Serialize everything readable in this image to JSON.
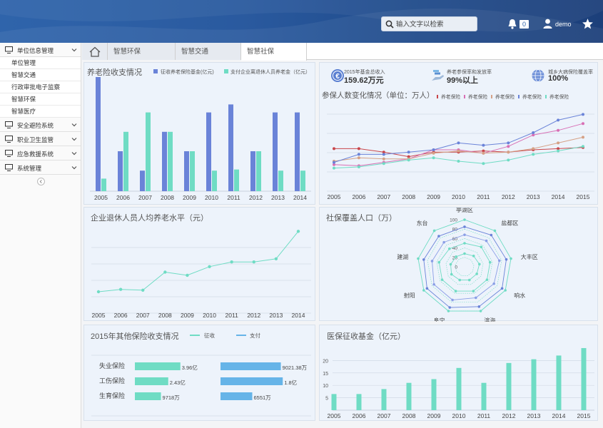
{
  "header": {
    "search_placeholder": "输入文字以检索",
    "notification_count": "0",
    "username": "demo"
  },
  "sidebar": {
    "groups": [
      {
        "label": "单位信息管理",
        "expanded": true,
        "items": [
          "单位管理",
          "智慧交通",
          "行政审批电子监察",
          "智慧环保",
          "智慧医疗"
        ]
      },
      {
        "label": "安全避险系统"
      },
      {
        "label": "职业卫生监管"
      },
      {
        "label": "应急救援系统"
      },
      {
        "label": "系统管理"
      }
    ]
  },
  "tabs": [
    "智慧环保",
    "智慧交通",
    "智慧社保"
  ],
  "active_tab": "智慧社保",
  "stats": [
    {
      "label": "2015年基金总收入",
      "value": "159.62万元",
      "icon": "euro-coin-icon"
    },
    {
      "label": "养老参保率和发放率",
      "value": "99%以上",
      "icon": "hand-coins-icon"
    },
    {
      "label": "城乡大病保险覆盖率",
      "value": "100%",
      "icon": "globe-icon"
    }
  ],
  "colors": {
    "blue": "#6a83d8",
    "teal": "#6fdcc4",
    "bar_blue": "#66b4e8"
  },
  "charts": [
    {
      "id": "pension",
      "type": "bar",
      "title": "养老险收支情况",
      "categories": [
        "2005",
        "2006",
        "2007",
        "2008",
        "2009",
        "2010",
        "2011",
        "2012",
        "2013",
        "2014"
      ],
      "series": [
        {
          "name": "征收养老保险基金(亿元)",
          "values": [
            100,
            35,
            18,
            52,
            35,
            69,
            76,
            35,
            69,
            69
          ]
        },
        {
          "name": "支付企业离退休人员养老金（亿元）",
          "values": [
            11,
            52,
            69,
            52,
            35,
            18,
            19,
            35,
            18,
            18
          ]
        }
      ],
      "ylim": [
        0,
        100
      ]
    },
    {
      "id": "insured",
      "type": "line",
      "title": "参保人数变化情况（单位：万人）",
      "categories": [
        "2005",
        "2006",
        "2007",
        "2008",
        "2009",
        "2010",
        "2011",
        "2012",
        "2013",
        "2014",
        "2015"
      ],
      "series": [
        {
          "name": "养老保险",
          "color": "#c9454a",
          "values": [
            36,
            36,
            33,
            29,
            33,
            33,
            34,
            33,
            35,
            36,
            37
          ]
        },
        {
          "name": "养老保险",
          "color": "#d86fb5",
          "values": [
            22,
            21,
            24,
            27,
            35,
            35,
            32,
            38,
            48,
            52,
            58
          ]
        },
        {
          "name": "养老保险",
          "color": "#d5a186",
          "values": [
            25,
            28,
            27,
            27,
            32,
            34,
            32,
            33,
            36,
            41,
            46
          ]
        },
        {
          "name": "养老保险",
          "color": "#6a83d8",
          "values": [
            24,
            31,
            31,
            33,
            35,
            41,
            39,
            41,
            50,
            61,
            66
          ]
        },
        {
          "name": "养老保险",
          "color": "#6fdcc4",
          "values": [
            19,
            20,
            23,
            26,
            28,
            25,
            23,
            26,
            31,
            34,
            38
          ]
        }
      ],
      "ylim": [
        0,
        80
      ]
    },
    {
      "id": "retiree",
      "type": "line",
      "title": "企业退休人员人均养老水平（元）",
      "categories": [
        "2005",
        "2006",
        "2007",
        "2008",
        "2009",
        "2010",
        "2011",
        "2012",
        "2013",
        "2014"
      ],
      "series": [
        {
          "name": "",
          "color": "#6fdcc4",
          "values": [
            20,
            23,
            22,
            45,
            41,
            52,
            58,
            58,
            62,
            97
          ]
        }
      ],
      "ylim": [
        0,
        100
      ]
    },
    {
      "id": "coverage",
      "type": "radar",
      "title": "社保覆盖人口（万）",
      "axes": [
        "亭湖区",
        "盐都区",
        "大丰区",
        "响水",
        "滨海",
        "阜宁",
        "射阳",
        "建湖",
        "东台"
      ],
      "ticks": [
        "0",
        "20",
        "40",
        "60",
        "80",
        "100"
      ],
      "max": 100,
      "series": [
        {
          "color": "#6fdcc4",
          "values": [
            100,
            100,
            100,
            100,
            100,
            100,
            100,
            100,
            100
          ]
        },
        {
          "color": "#6a83d8",
          "values": [
            85,
            88,
            90,
            92,
            90,
            92,
            92,
            88,
            85
          ]
        },
        {
          "color": "#8a9ee6",
          "values": [
            68,
            72,
            75,
            72,
            70,
            75,
            75,
            70,
            68
          ]
        },
        {
          "color": "#6fdcc4",
          "values": [
            50,
            55,
            55,
            55,
            55,
            55,
            55,
            55,
            50
          ]
        },
        {
          "color": "#6fdcc4",
          "values": [
            28,
            30,
            32,
            30,
            30,
            30,
            32,
            30,
            28
          ]
        }
      ]
    },
    {
      "id": "other",
      "type": "bar",
      "title": "2015年其他保险收支情况",
      "legend": [
        "征收",
        "支付"
      ],
      "rows": [
        {
          "label": "失业保险",
          "income": 0.75,
          "income_label": "3.96亿",
          "pay": 0.95,
          "pay_label": "9021.38万"
        },
        {
          "label": "工伤保险",
          "income": 0.55,
          "income_label": "2.43亿",
          "pay": 0.98,
          "pay_label": "1.8亿"
        },
        {
          "label": "生育保险",
          "income": 0.43,
          "income_label": "9718万",
          "pay": 0.5,
          "pay_label": "6551万"
        }
      ]
    },
    {
      "id": "medical",
      "type": "bar",
      "title": "医保征收基金（亿元）",
      "categories": [
        "2005",
        "2006",
        "2007",
        "2008",
        "2009",
        "2010",
        "2011",
        "2012",
        "2013",
        "2014",
        "2015"
      ],
      "yticks": [
        "5",
        "10",
        "15",
        "20"
      ],
      "values": [
        6.5,
        6.5,
        8.5,
        11,
        12.5,
        17,
        11,
        19,
        20.5,
        22,
        25
      ],
      "ylim": [
        0,
        27
      ]
    }
  ]
}
